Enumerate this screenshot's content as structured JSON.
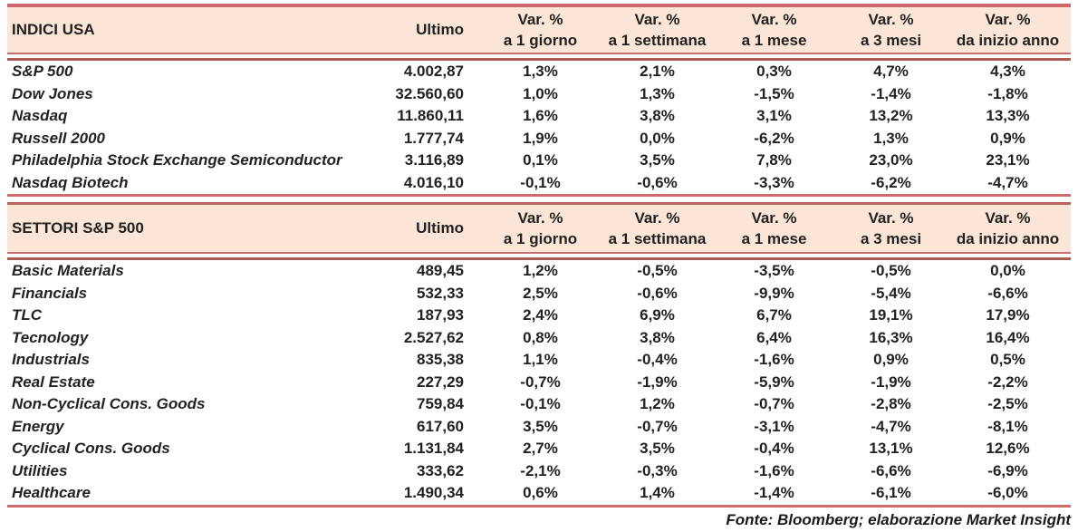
{
  "colors": {
    "header_bg": "#fbe5d7",
    "rule_red": "#cf686a",
    "double_rule_top": "#c4706e",
    "double_rule_bottom": "#ae5a50",
    "text": "#222222"
  },
  "tables": [
    {
      "title": "INDICI USA",
      "ultimo_header": "Ultimo",
      "var_headers": [
        {
          "line1": "Var. %",
          "line2": "a 1 giorno"
        },
        {
          "line1": "Var. %",
          "line2": "a 1 settimana"
        },
        {
          "line1": "Var. %",
          "line2": "a 1 mese"
        },
        {
          "line1": "Var. %",
          "line2": "a 3 mesi"
        },
        {
          "line1": "Var. %",
          "line2": "da inizio anno"
        }
      ],
      "rows": [
        {
          "name": "S&P 500",
          "ultimo": "4.002,87",
          "vars": [
            "1,3%",
            "2,1%",
            "0,3%",
            "4,7%",
            "4,3%"
          ]
        },
        {
          "name": "Dow Jones",
          "ultimo": "32.560,60",
          "vars": [
            "1,0%",
            "1,3%",
            "-1,5%",
            "-1,4%",
            "-1,8%"
          ]
        },
        {
          "name": "Nasdaq",
          "ultimo": "11.860,11",
          "vars": [
            "1,6%",
            "3,8%",
            "3,1%",
            "13,2%",
            "13,3%"
          ]
        },
        {
          "name": "Russell 2000",
          "ultimo": "1.777,74",
          "vars": [
            "1,9%",
            "0,0%",
            "-6,2%",
            "1,3%",
            "0,9%"
          ]
        },
        {
          "name": "Philadelphia Stock Exchange Semiconductor",
          "ultimo": "3.116,89",
          "vars": [
            "0,1%",
            "3,5%",
            "7,8%",
            "23,0%",
            "23,1%"
          ]
        },
        {
          "name": "Nasdaq Biotech",
          "ultimo": "4.016,10",
          "vars": [
            "-0,1%",
            "-0,6%",
            "-3,3%",
            "-6,2%",
            "-4,7%"
          ]
        }
      ]
    },
    {
      "title": "SETTORI S&P 500",
      "ultimo_header": "Ultimo",
      "var_headers": [
        {
          "line1": "Var. %",
          "line2": "a 1 giorno"
        },
        {
          "line1": "Var. %",
          "line2": "a 1 settimana"
        },
        {
          "line1": "Var. %",
          "line2": "a 1 mese"
        },
        {
          "line1": "Var. %",
          "line2": "a 3 mesi"
        },
        {
          "line1": "Var. %",
          "line2": "da inizio anno"
        }
      ],
      "rows": [
        {
          "name": "Basic Materials",
          "ultimo": "489,45",
          "vars": [
            "1,2%",
            "-0,5%",
            "-3,5%",
            "-0,5%",
            "0,0%"
          ]
        },
        {
          "name": "Financials",
          "ultimo": "532,33",
          "vars": [
            "2,5%",
            "-0,6%",
            "-9,9%",
            "-5,4%",
            "-6,6%"
          ]
        },
        {
          "name": "TLC",
          "ultimo": "187,93",
          "vars": [
            "2,4%",
            "6,9%",
            "6,7%",
            "19,1%",
            "17,9%"
          ]
        },
        {
          "name": "Tecnology",
          "ultimo": "2.527,62",
          "vars": [
            "0,8%",
            "3,8%",
            "6,4%",
            "16,3%",
            "16,4%"
          ]
        },
        {
          "name": "Industrials",
          "ultimo": "835,38",
          "vars": [
            "1,1%",
            "-0,4%",
            "-1,6%",
            "0,9%",
            "0,5%"
          ]
        },
        {
          "name": "Real Estate",
          "ultimo": "227,29",
          "vars": [
            "-0,7%",
            "-1,9%",
            "-5,9%",
            "-1,9%",
            "-2,2%"
          ]
        },
        {
          "name": "Non-Cyclical Cons. Goods",
          "ultimo": "759,84",
          "vars": [
            "-0,1%",
            "1,2%",
            "-0,7%",
            "-2,8%",
            "-2,5%"
          ]
        },
        {
          "name": "Energy",
          "ultimo": "617,60",
          "vars": [
            "3,5%",
            "-0,7%",
            "-3,1%",
            "-4,7%",
            "-8,1%"
          ]
        },
        {
          "name": "Cyclical Cons. Goods",
          "ultimo": "1.131,84",
          "vars": [
            "2,7%",
            "3,5%",
            "-0,4%",
            "13,1%",
            "12,6%"
          ]
        },
        {
          "name": "Utilities",
          "ultimo": "333,62",
          "vars": [
            "-2,1%",
            "-0,3%",
            "-1,6%",
            "-6,6%",
            "-6,9%"
          ]
        },
        {
          "name": "Healthcare",
          "ultimo": "1.490,34",
          "vars": [
            "0,6%",
            "1,4%",
            "-1,4%",
            "-6,1%",
            "-6,0%"
          ]
        }
      ]
    }
  ],
  "footer": {
    "source_label": "Fonte: Bloomberg; elaborazione Market Insight"
  }
}
